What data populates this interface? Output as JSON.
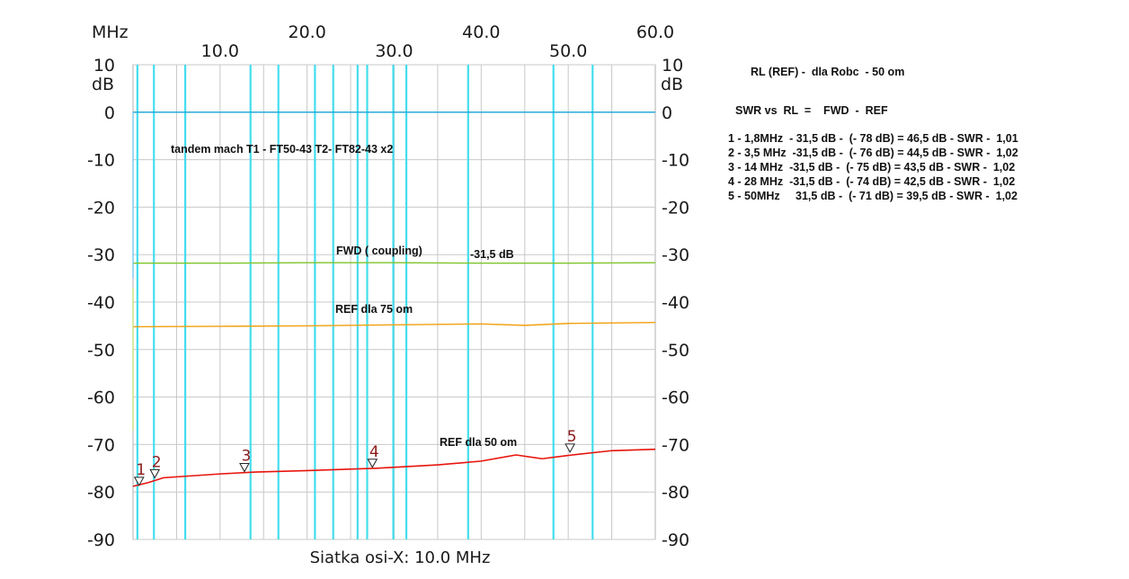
{
  "chart_data": {
    "type": "line",
    "x_unit_label": "MHz",
    "x_ticks": [
      "10.0",
      "20.0",
      "30.0",
      "40.0",
      "50.0",
      "60.0"
    ],
    "xlim": [
      0,
      60
    ],
    "y_unit_label": "dB",
    "y_ticks": [
      "10",
      "0",
      "-10",
      "-20",
      "-30",
      "-40",
      "-50",
      "-60",
      "-70",
      "-80",
      "-90"
    ],
    "ylim": [
      -90,
      10
    ],
    "grid": true,
    "xlabel": "Siatka osi-X: 10.0 MHz",
    "marker_freqs_mhz": [
      0.5,
      2.4,
      6.0,
      13.5,
      16.7,
      20.9,
      23.0,
      25.8,
      26.9,
      29.9,
      31.4,
      38.5,
      48.3,
      52.8
    ],
    "series": [
      {
        "color": "#1aa5d8",
        "x": [
          0,
          10,
          20,
          30,
          40,
          50,
          60
        ],
        "y": [
          0,
          0,
          0,
          0,
          0,
          0,
          0
        ]
      },
      {
        "color": "#7ec42a",
        "x": [
          0,
          10,
          20,
          30,
          40,
          50,
          60
        ],
        "y": [
          -31.8,
          -31.8,
          -31.7,
          -31.7,
          -31.8,
          -31.8,
          -31.7
        ]
      },
      {
        "color": "#f0a010",
        "x": [
          0,
          10,
          20,
          30,
          40,
          45,
          50,
          60
        ],
        "y": [
          -45.2,
          -45.1,
          -45.0,
          -44.8,
          -44.6,
          -44.9,
          -44.5,
          -44.3
        ]
      },
      {
        "color": "#e8140c",
        "x": [
          0,
          1.8,
          3.5,
          10,
          14,
          20,
          28,
          35,
          40,
          44,
          47,
          50,
          55,
          60
        ],
        "y": [
          -78.8,
          -78.0,
          -77.0,
          -76.2,
          -75.8,
          -75.5,
          -75.0,
          -74.3,
          -73.5,
          -72.2,
          -73.0,
          -72.3,
          -71.3,
          -71.0
        ]
      }
    ],
    "markers": [
      {
        "label": "1",
        "x": 0.7,
        "y": -78.8
      },
      {
        "label": "2",
        "x": 2.5,
        "y": -77.2
      },
      {
        "label": "3",
        "x": 12.8,
        "y": -75.9
      },
      {
        "label": "4",
        "x": 27.5,
        "y": -75.0
      },
      {
        "label": "5",
        "x": 50.2,
        "y": -71.8
      }
    ],
    "annotations": [
      "tandem mach T1 - FT50-43   T2-  FT82-43 x2",
      "FWD   ( coupling)",
      "-31,5 dB",
      "REF    dla 75 om",
      "REF    dla 50 om"
    ]
  },
  "side_notes": {
    "title": "RL (REF) -  dla Robc  - 50 om",
    "formula": "SWR vs  RL  =    FWD  -  REF",
    "rows": [
      "1 - 1,8MHz  - 31,5 dB -  (- 78 dB) = 46,5 dB - SWR -  1,01",
      "2 - 3,5 MHz  -31,5 dB -  (- 76 dB) = 44,5 dB - SWR -  1,02",
      "3 - 14 MHz  -31,5 dB -  (- 75 dB) = 43,5 dB - SWR -  1,02",
      "4 - 28 MHz  -31,5 dB -  (- 74 dB) = 42,5 dB - SWR -  1,02",
      "5 - 50MHz     31,5 dB -  (- 71 dB) = 39,5 dB - SWR -  1,02"
    ]
  },
  "colors": {
    "grid": "#c8c8c8",
    "marker_line": "#44ddee",
    "marker_label": "#8b1a1a",
    "frame": "#b0b0b0"
  }
}
